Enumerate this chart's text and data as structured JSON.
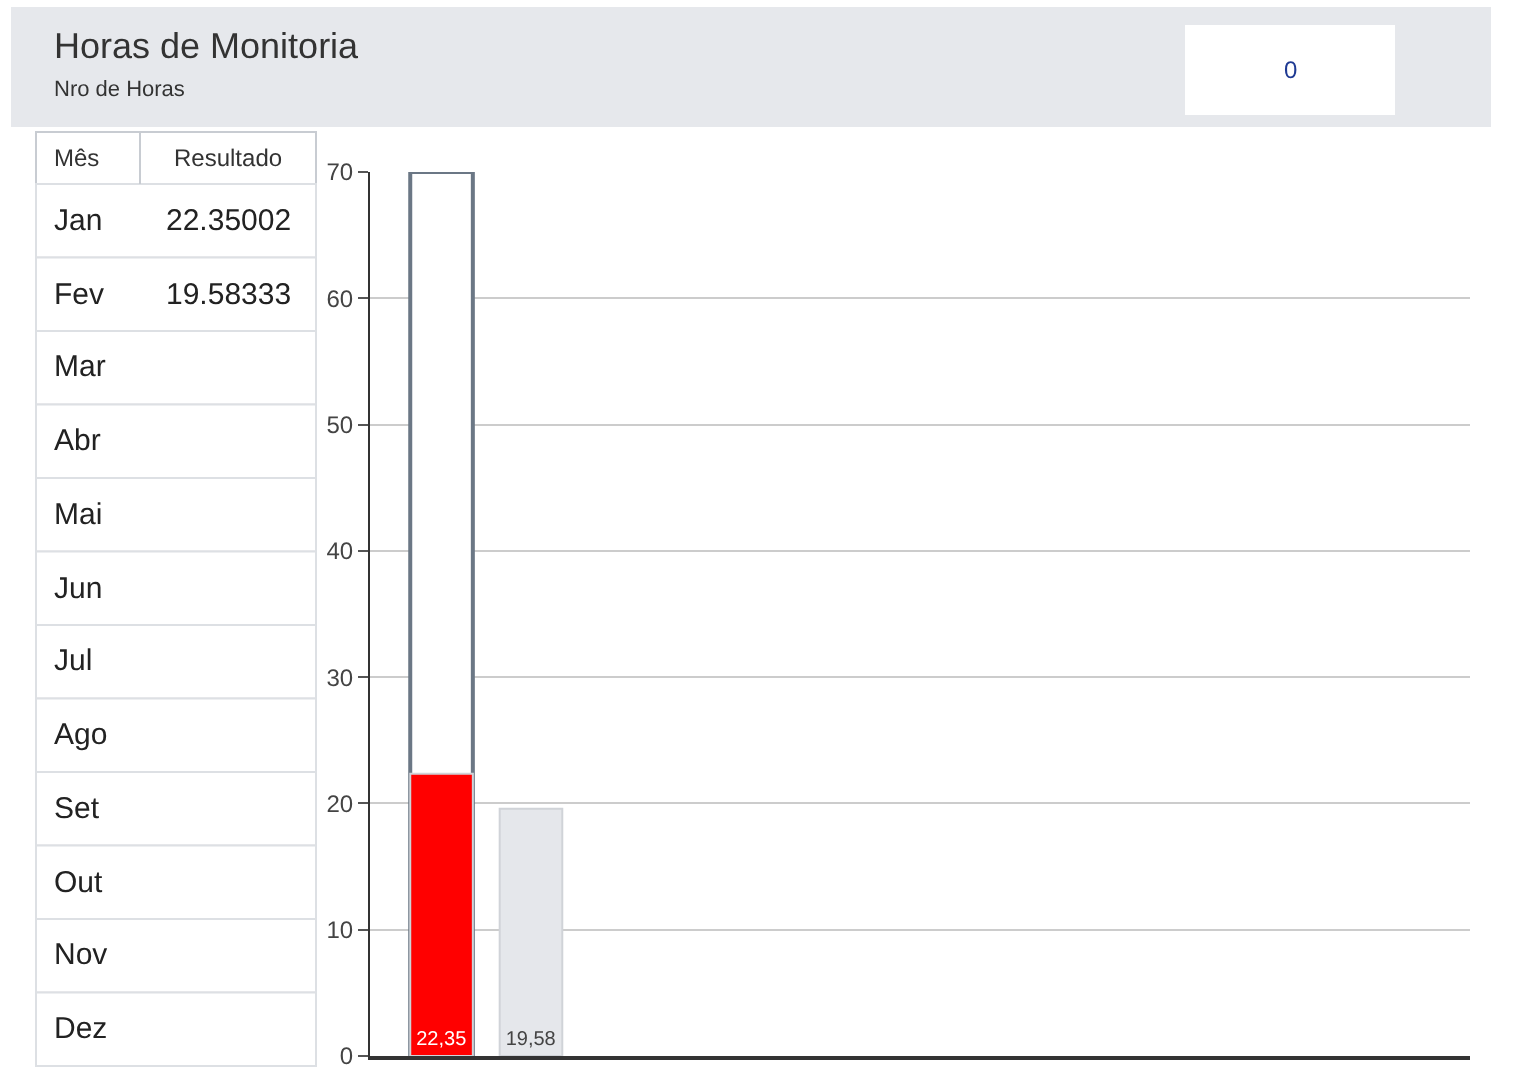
{
  "chart_data": [
    {
      "type": "other",
      "title": "Horas de Monitoria",
      "subtitle": "Nro de Horas",
      "annotations": [
        "0"
      ],
      "xlabel": "Mês",
      "ylabel": "Resultado",
      "categories": [
        "Jan",
        "Fev",
        "Mar",
        "Abr",
        "Mai",
        "Jun",
        "Jul",
        "Ago",
        "Set",
        "Out",
        "Nov",
        "Dez"
      ],
      "values": [
        22.35002,
        19.58333,
        null,
        null,
        null,
        null,
        null,
        null,
        null,
        null,
        null,
        null
      ],
      "data_labels": true
    },
    {
      "type": "bar",
      "categories": [
        null,
        null,
        null,
        null,
        null,
        null,
        null,
        null,
        null,
        null,
        null,
        null
      ],
      "ylim": [
        0,
        70
      ],
      "yticks": [
        0,
        10,
        20,
        30,
        40,
        50,
        60,
        70
      ],
      "grid": "y",
      "series": [
        {
          "color": "#ffffff",
          "values": [
            70,
            null,
            null,
            null,
            null,
            null,
            null,
            null,
            null,
            null,
            null,
            null
          ]
        },
        {
          "colors": [
            "#ff0000",
            "#e5e7eb",
            null,
            null,
            null,
            null,
            null,
            null,
            null,
            null,
            null,
            null
          ],
          "values": [
            22.35002,
            19.58333,
            null,
            null,
            null,
            null,
            null,
            null,
            null,
            null,
            null,
            null
          ],
          "value_labels": [
            "22,35",
            "19,58",
            null,
            null,
            null,
            null,
            null,
            null,
            null,
            null,
            null,
            null
          ]
        }
      ]
    }
  ]
}
